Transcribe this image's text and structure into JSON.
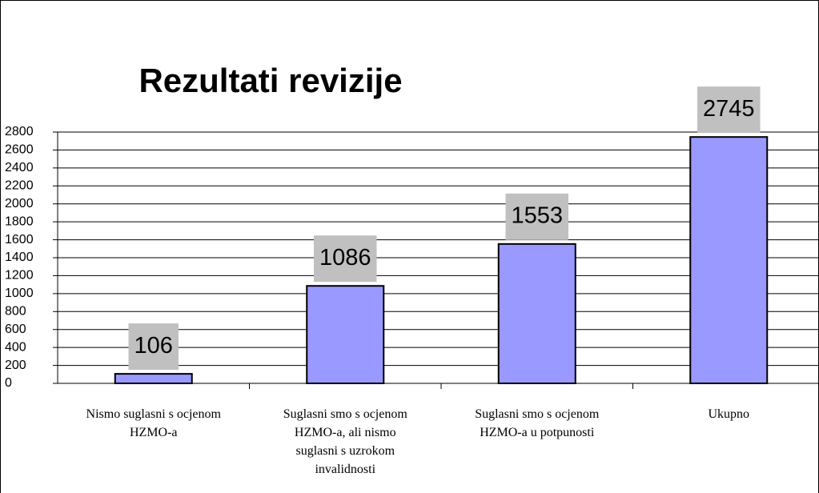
{
  "chart_data": {
    "type": "bar",
    "title": "Rezultati revizije",
    "categories": [
      "Nismo suglasni s ocjenom HZMO-a",
      "Suglasni smo s ocjenom HZMO-a, ali nismo suglasni s uzrokom invalidnosti",
      "Suglasni smo s ocjenom HZMO-a u potpunosti",
      "Ukupno"
    ],
    "values": [
      106,
      1086,
      1553,
      2745
    ],
    "color": "#9999ff",
    "ylim": [
      0,
      2800
    ],
    "yticks": [
      0,
      200,
      400,
      600,
      800,
      1000,
      1200,
      1400,
      1600,
      1800,
      2000,
      2200,
      2400,
      2600,
      2800
    ],
    "grid": true
  }
}
